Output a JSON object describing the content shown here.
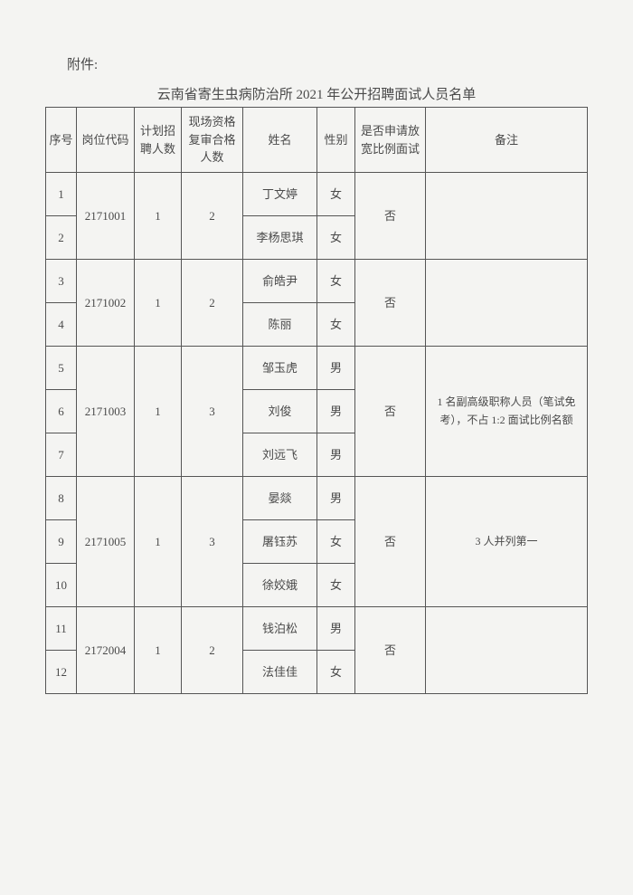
{
  "attachment_label": "附件:",
  "title": "云南省寄生虫病防治所 2021 年公开招聘面试人员名单",
  "headers": {
    "seq": "序号",
    "code": "岗位代码",
    "plan": "计划招聘人数",
    "verify": "现场资格复审合格人数",
    "name": "姓名",
    "gender": "性别",
    "apply": "是否申请放宽比例面试",
    "remark": "备注"
  },
  "groups": [
    {
      "code": "2171001",
      "plan": "1",
      "verify": "2",
      "apply": "否",
      "remark": "",
      "rows": [
        {
          "seq": "1",
          "name": "丁文婷",
          "gender": "女"
        },
        {
          "seq": "2",
          "name": "李杨思琪",
          "gender": "女"
        }
      ]
    },
    {
      "code": "2171002",
      "plan": "1",
      "verify": "2",
      "apply": "否",
      "remark": "",
      "rows": [
        {
          "seq": "3",
          "name": "俞皓尹",
          "gender": "女"
        },
        {
          "seq": "4",
          "name": "陈丽",
          "gender": "女"
        }
      ]
    },
    {
      "code": "2171003",
      "plan": "1",
      "verify": "3",
      "apply": "否",
      "remark": "1 名副高级职称人员（笔试免考），不占 1:2 面试比例名额",
      "rows": [
        {
          "seq": "5",
          "name": "邹玉虎",
          "gender": "男"
        },
        {
          "seq": "6",
          "name": "刘俊",
          "gender": "男"
        },
        {
          "seq": "7",
          "name": "刘远飞",
          "gender": "男"
        }
      ]
    },
    {
      "code": "2171005",
      "plan": "1",
      "verify": "3",
      "apply": "否",
      "remark": "3 人并列第一",
      "rows": [
        {
          "seq": "8",
          "name": "晏燚",
          "gender": "男"
        },
        {
          "seq": "9",
          "name": "屠钰苏",
          "gender": "女"
        },
        {
          "seq": "10",
          "name": "徐姣娥",
          "gender": "女"
        }
      ]
    },
    {
      "code": "2172004",
      "plan": "1",
      "verify": "2",
      "apply": "否",
      "remark": "",
      "rows": [
        {
          "seq": "11",
          "name": "钱泊松",
          "gender": "男"
        },
        {
          "seq": "12",
          "name": "法佳佳",
          "gender": "女"
        }
      ]
    }
  ]
}
